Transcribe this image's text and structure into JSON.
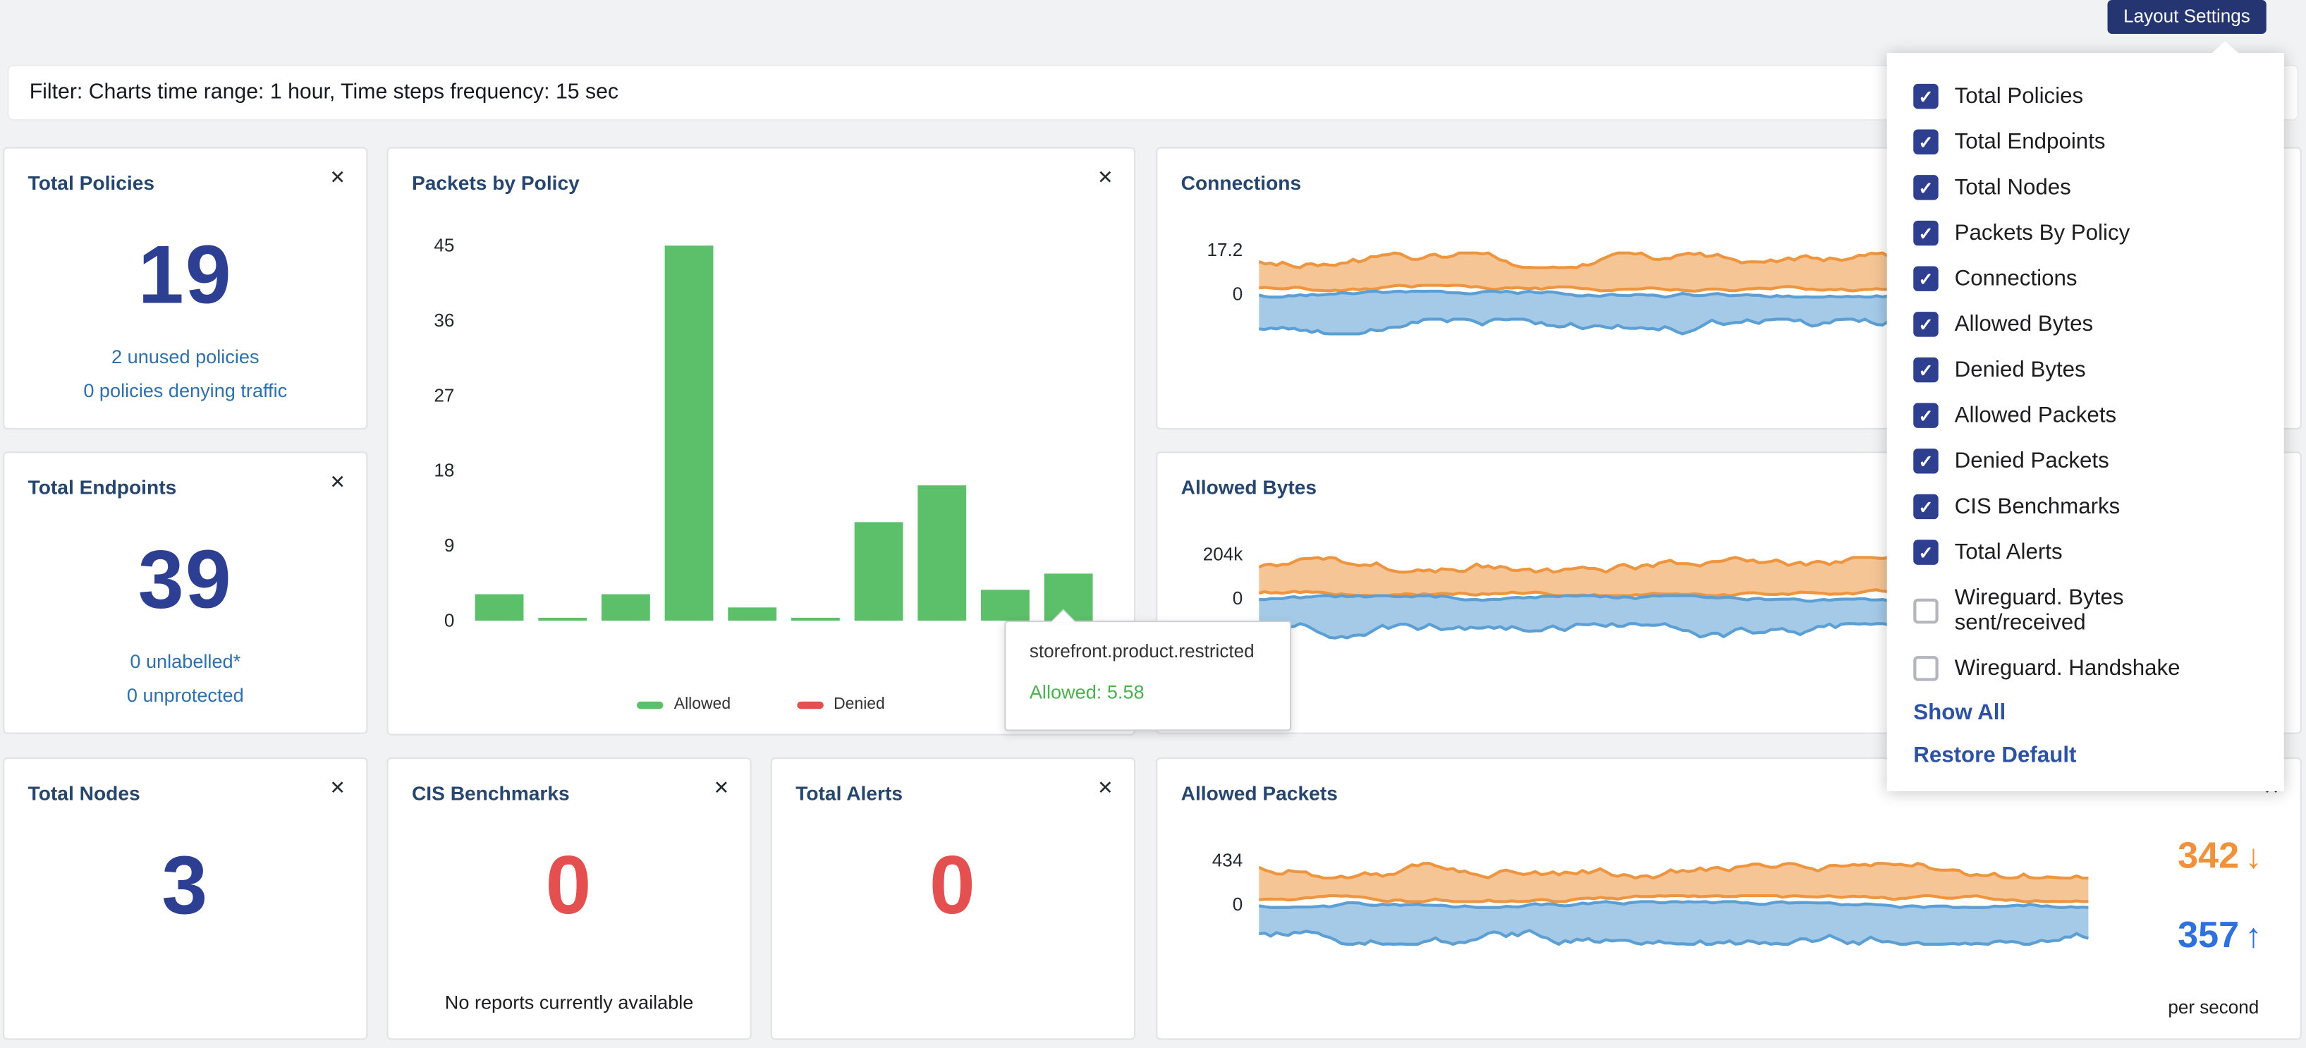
{
  "icons": {
    "close": "✕",
    "check": "✓",
    "arrow_down": "↓",
    "arrow_up": "↑"
  },
  "colors": {
    "button_navy": "#243572",
    "title_blue": "#26456f",
    "number_blue": "#2d3f92",
    "link_blue": "#2e6fad",
    "alert_red": "#e45050",
    "bar_green": "#5cbf6a",
    "series_orange": "#ee9540",
    "series_blue": "#5b9fd4",
    "rate_orange": "#f0913c",
    "rate_blue": "#2e70de",
    "checkbox_blue": "#2e3f90"
  },
  "layout_settings": {
    "button_label": "Layout Settings",
    "show_all_label": "Show All",
    "restore_default_label": "Restore Default",
    "menu_items": [
      {
        "label": "Total Policies",
        "checked": true
      },
      {
        "label": "Total Endpoints",
        "checked": true
      },
      {
        "label": "Total Nodes",
        "checked": true
      },
      {
        "label": "Packets By Policy",
        "checked": true
      },
      {
        "label": "Connections",
        "checked": true
      },
      {
        "label": "Allowed Bytes",
        "checked": true
      },
      {
        "label": "Denied Bytes",
        "checked": true
      },
      {
        "label": "Allowed Packets",
        "checked": true
      },
      {
        "label": "Denied Packets",
        "checked": true
      },
      {
        "label": "CIS Benchmarks",
        "checked": true
      },
      {
        "label": "Total Alerts",
        "checked": true
      },
      {
        "label": "Wireguard. Bytes sent/received",
        "checked": false
      },
      {
        "label": "Wireguard. Handshake",
        "checked": false
      }
    ]
  },
  "filter_bar": {
    "text": "Filter: Charts time range: 1 hour, Time steps frequency: 15 sec"
  },
  "cards": {
    "total_policies": {
      "title": "Total Policies",
      "value": "19",
      "link1": "2 unused policies",
      "link2": "0 policies denying traffic"
    },
    "total_endpoints": {
      "title": "Total Endpoints",
      "value": "39",
      "link1": "0 unlabelled*",
      "link2": "0 unprotected"
    },
    "total_nodes": {
      "title": "Total Nodes",
      "value": "3"
    },
    "cis_benchmarks": {
      "title": "CIS Benchmarks",
      "value": "0",
      "note": "No reports currently available"
    },
    "total_alerts": {
      "title": "Total Alerts",
      "value": "0"
    },
    "packets_by_policy": {
      "title": "Packets by Policy"
    },
    "connections": {
      "title": "Connections"
    },
    "allowed_bytes": {
      "title": "Allowed Bytes"
    },
    "allowed_packets": {
      "title": "Allowed Packets",
      "rate_down": "342",
      "rate_up": "357",
      "unit": "per second"
    }
  },
  "tooltip": {
    "title": "storefront.product.restricted",
    "value": "Allowed: 5.58"
  },
  "chart_data": [
    {
      "id": "packets_by_policy",
      "type": "bar",
      "title": "Packets by Policy",
      "ylim": [
        0,
        45
      ],
      "y_ticks": [
        0,
        9,
        18,
        27,
        36,
        45
      ],
      "values": [
        3.2,
        0.4,
        3.1,
        45,
        1.6,
        0.3,
        11.8,
        16.2,
        3.7,
        5.58
      ],
      "bar_color": "#5cbf6a",
      "legend": [
        {
          "label": "Allowed",
          "color": "#5cbf6a"
        },
        {
          "label": "Denied",
          "color": "#e45050"
        }
      ],
      "tooltip": {
        "category": "storefront.product.restricted",
        "series": "Allowed",
        "value": 5.58
      }
    },
    {
      "id": "connections",
      "type": "area",
      "title": "Connections",
      "y_ticks": [
        "17.2",
        "0"
      ],
      "series": [
        {
          "name": "orange-series",
          "color": "#ee9540"
        },
        {
          "name": "blue-series",
          "color": "#5b9fd4"
        }
      ]
    },
    {
      "id": "allowed_bytes",
      "type": "area",
      "title": "Allowed Bytes",
      "y_ticks": [
        "204k",
        "0"
      ],
      "series": [
        {
          "name": "orange-series",
          "color": "#ee9540"
        },
        {
          "name": "blue-series",
          "color": "#5b9fd4"
        }
      ]
    },
    {
      "id": "allowed_packets",
      "type": "area",
      "title": "Allowed Packets",
      "y_ticks": [
        "434",
        "0"
      ],
      "series": [
        {
          "name": "orange-series",
          "color": "#ee9540"
        },
        {
          "name": "blue-series",
          "color": "#5b9fd4"
        }
      ]
    }
  ]
}
